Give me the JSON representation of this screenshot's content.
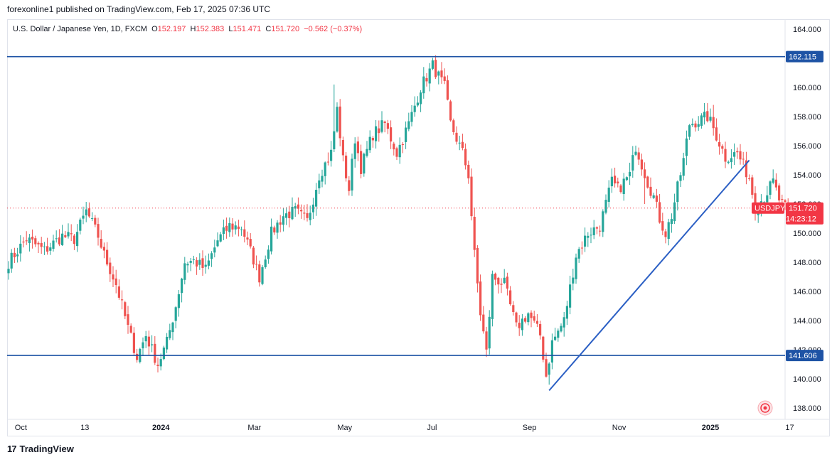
{
  "publish_line": "forexonline1 published on TradingView.com, Feb 17, 2025 07:36 UTC",
  "legend": {
    "symbol": "U.S. Dollar / Japanese Yen, 1D, FXCM",
    "o_label": "O",
    "o": "152.197",
    "h_label": "H",
    "h": "152.383",
    "l_label": "L",
    "l": "151.471",
    "c_label": "C",
    "c": "151.720",
    "change": "−0.562 (−0.37%)"
  },
  "footer": {
    "brand": "TradingView",
    "logo": "tradingview-logo-icon"
  },
  "colors": {
    "up": "#26a69a",
    "down": "#ef5350",
    "line": "#1e53a5",
    "trend": "#2b5fc4",
    "last": "#f23645"
  },
  "chart_data": {
    "type": "candlestick",
    "symbol": "USDJPY",
    "ylim": [
      137.5,
      165.0
    ],
    "yticks": [
      "164.000",
      "162.000",
      "160.000",
      "158.000",
      "156.000",
      "154.000",
      "152.000",
      "150.000",
      "148.000",
      "146.000",
      "144.000",
      "142.000",
      "140.000",
      "138.000"
    ],
    "x_labels": [
      {
        "label": "Oct",
        "idx": 4,
        "bold": false
      },
      {
        "label": "13",
        "idx": 26,
        "bold": false
      },
      {
        "label": "2024",
        "idx": 50,
        "bold": true
      },
      {
        "label": "Mar",
        "idx": 82,
        "bold": false
      },
      {
        "label": "May",
        "idx": 112,
        "bold": false
      },
      {
        "label": "Jul",
        "idx": 142,
        "bold": false
      },
      {
        "label": "Sep",
        "idx": 174,
        "bold": false
      },
      {
        "label": "Nov",
        "idx": 204,
        "bold": false
      },
      {
        "label": "2025",
        "idx": 234,
        "bold": true
      },
      {
        "label": "17",
        "idx": 262,
        "bold": false
      }
    ],
    "hlines": [
      {
        "value": 162.115,
        "label": "162.115"
      },
      {
        "value": 141.606,
        "label": "141.606"
      }
    ],
    "trendline": {
      "from": {
        "idx": 181,
        "value": 139.2
      },
      "to": {
        "idx": 248,
        "value": 155.0
      }
    },
    "last_price": {
      "value": 151.72,
      "label": "151.720",
      "name": "USDJPY",
      "countdown": "14:23:12"
    },
    "n_bars": 262,
    "anchors": [
      [
        0,
        148.0
      ],
      [
        6,
        149.6
      ],
      [
        12,
        148.8
      ],
      [
        18,
        149.8
      ],
      [
        22,
        149.6
      ],
      [
        26,
        151.5
      ],
      [
        30,
        149.8
      ],
      [
        32,
        148.5
      ],
      [
        36,
        146.5
      ],
      [
        40,
        143.5
      ],
      [
        43,
        141.5
      ],
      [
        46,
        143.0
      ],
      [
        50,
        141.0
      ],
      [
        53,
        142.5
      ],
      [
        56,
        145.0
      ],
      [
        59,
        148.0
      ],
      [
        62,
        148.1
      ],
      [
        66,
        147.5
      ],
      [
        70,
        149.5
      ],
      [
        74,
        150.5
      ],
      [
        78,
        150.4
      ],
      [
        82,
        148.2
      ],
      [
        84,
        147.0
      ],
      [
        88,
        150.0
      ],
      [
        92,
        151.2
      ],
      [
        96,
        151.5
      ],
      [
        100,
        150.8
      ],
      [
        104,
        154.0
      ],
      [
        108,
        155.5
      ],
      [
        110,
        158.5
      ],
      [
        112,
        155.0
      ],
      [
        114,
        153.0
      ],
      [
        116,
        156.5
      ],
      [
        118,
        154.5
      ],
      [
        122,
        156.8
      ],
      [
        126,
        157.5
      ],
      [
        130,
        155.5
      ],
      [
        134,
        157.5
      ],
      [
        138,
        160.0
      ],
      [
        142,
        161.5
      ],
      [
        146,
        160.0
      ],
      [
        148,
        157.5
      ],
      [
        152,
        155.5
      ],
      [
        154,
        154.0
      ],
      [
        156,
        148.5
      ],
      [
        158,
        144.5
      ],
      [
        160,
        141.8
      ],
      [
        162,
        147.0
      ],
      [
        166,
        146.5
      ],
      [
        170,
        143.5
      ],
      [
        174,
        144.5
      ],
      [
        178,
        143.0
      ],
      [
        180,
        140.2
      ],
      [
        182,
        142.5
      ],
      [
        186,
        144.0
      ],
      [
        190,
        148.5
      ],
      [
        194,
        150.0
      ],
      [
        198,
        150.5
      ],
      [
        202,
        153.5
      ],
      [
        204,
        153.0
      ],
      [
        208,
        154.0
      ],
      [
        210,
        156.0
      ],
      [
        214,
        153.5
      ],
      [
        216,
        152.5
      ],
      [
        218,
        151.0
      ],
      [
        220,
        150.0
      ],
      [
        222,
        151.2
      ],
      [
        226,
        155.0
      ],
      [
        228,
        157.5
      ],
      [
        232,
        157.8
      ],
      [
        234,
        158.0
      ],
      [
        236,
        157.2
      ],
      [
        240,
        155.2
      ],
      [
        244,
        155.5
      ],
      [
        248,
        153.8
      ],
      [
        250,
        151.8
      ],
      [
        253,
        152.5
      ],
      [
        256,
        153.5
      ],
      [
        258,
        152.3
      ],
      [
        260,
        151.72
      ]
    ],
    "wick_spikes": [
      [
        109,
        160.2
      ],
      [
        142,
        162.0
      ],
      [
        160,
        141.6
      ],
      [
        181,
        139.6
      ],
      [
        213,
        152.0
      ],
      [
        236,
        158.8
      ]
    ]
  }
}
